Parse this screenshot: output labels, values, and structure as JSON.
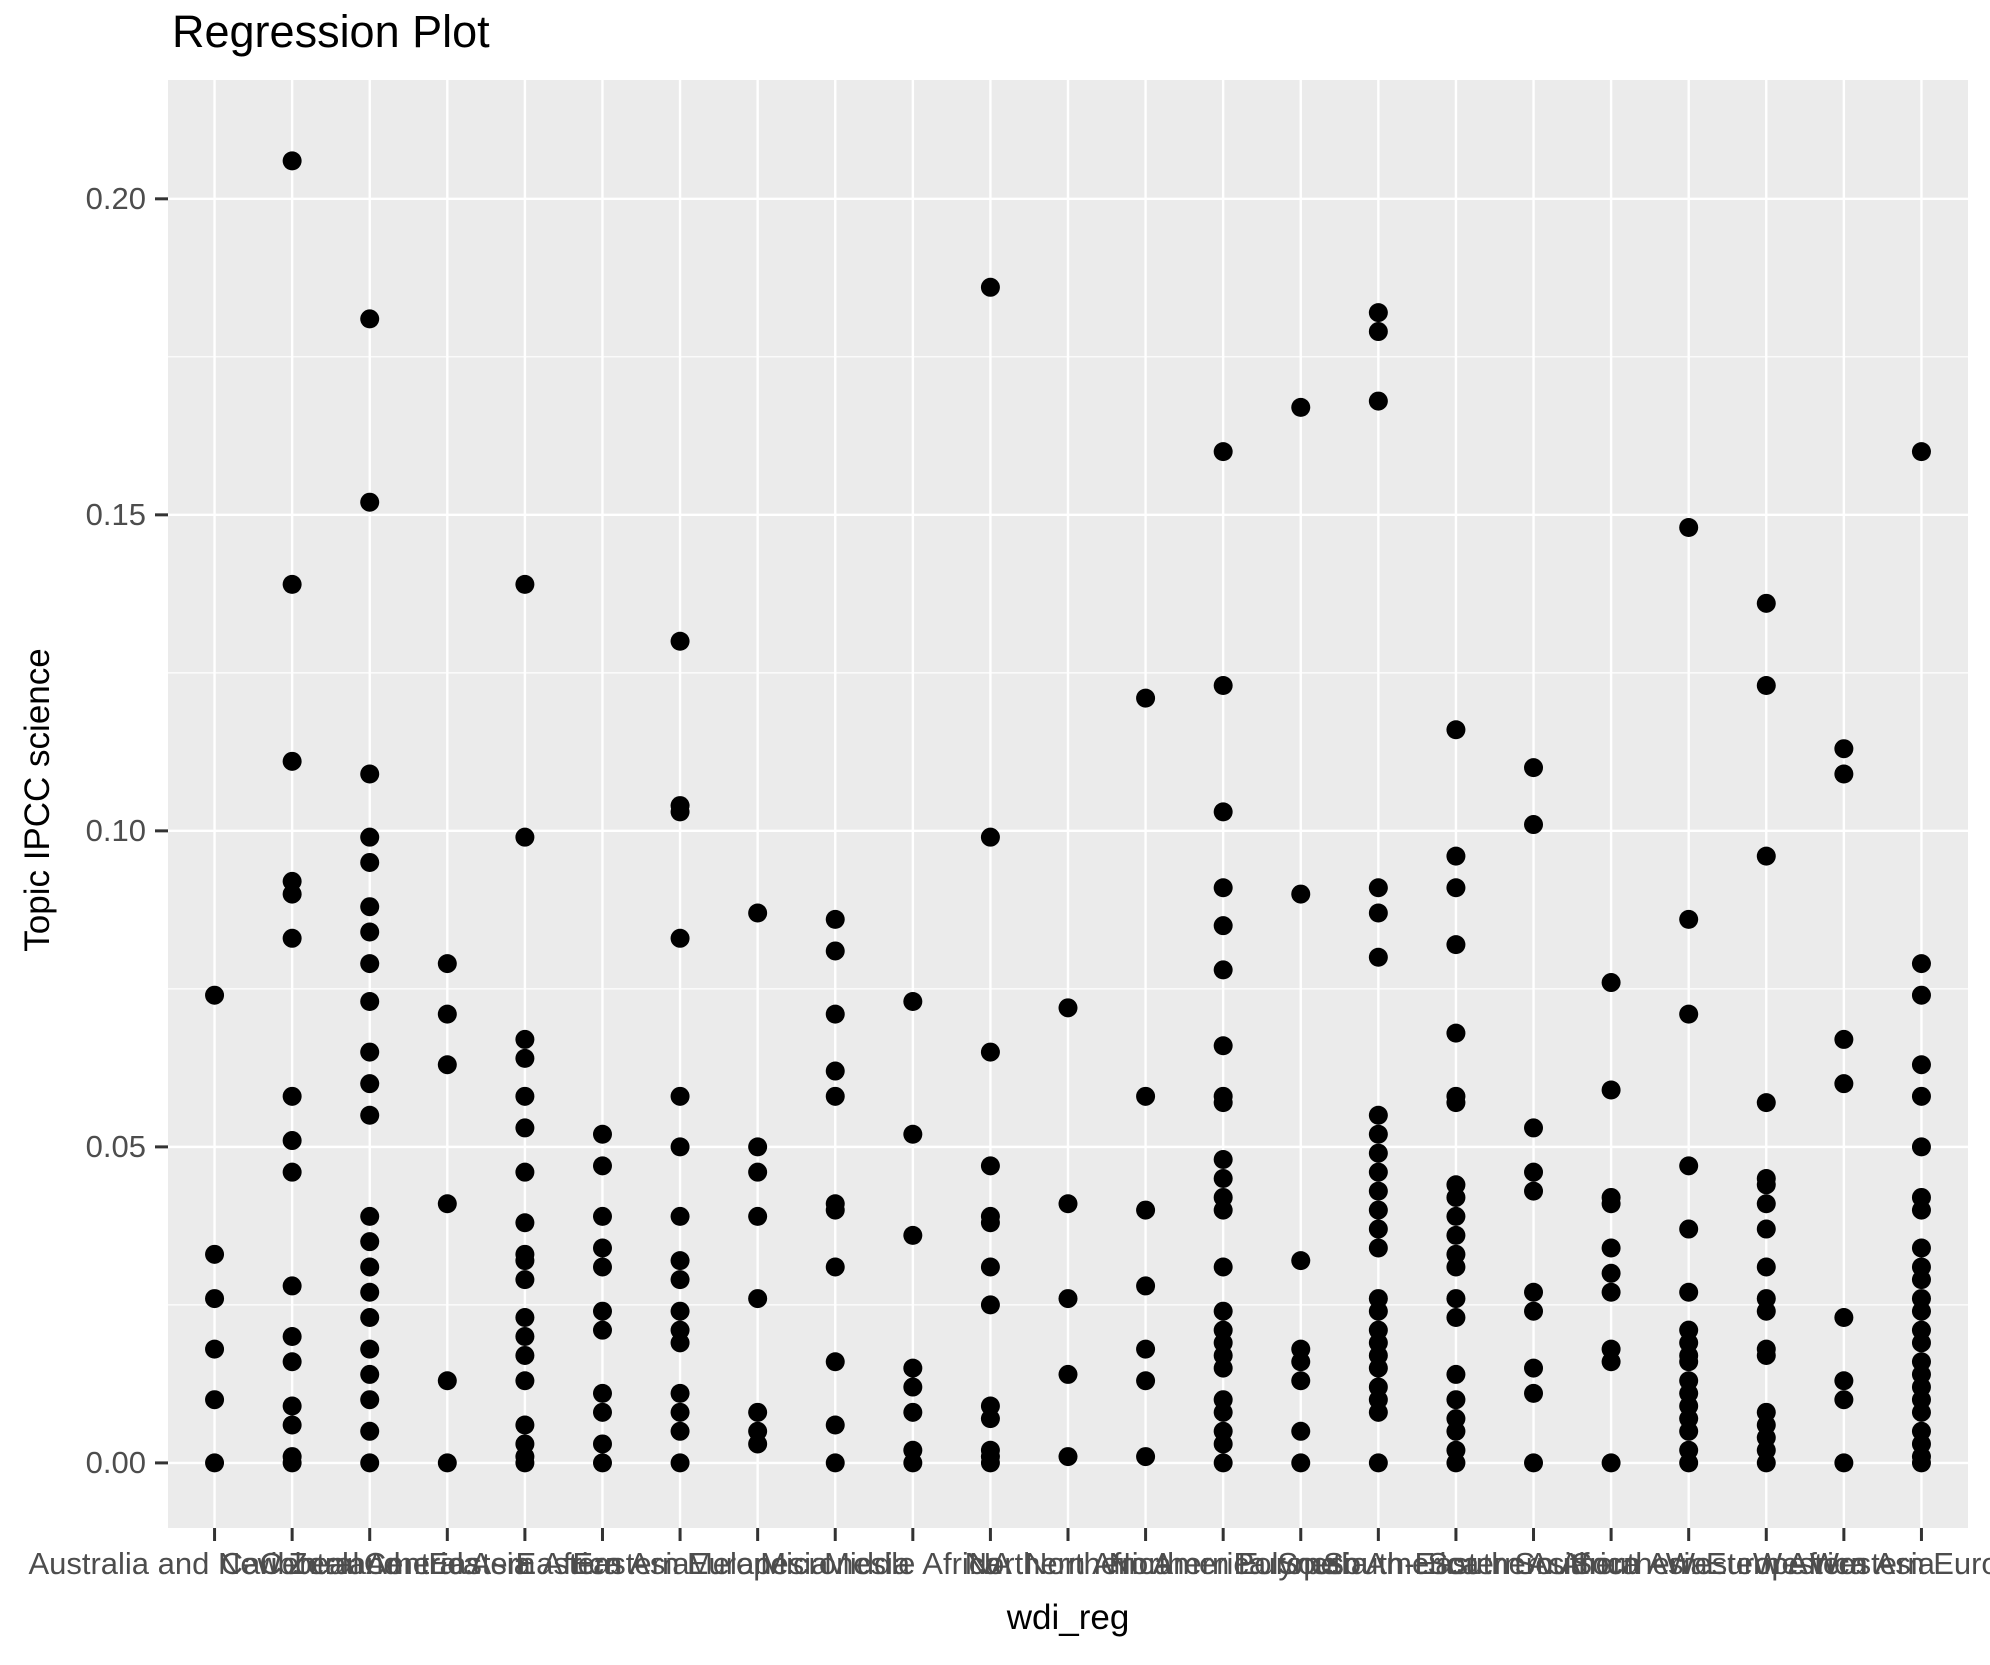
{
  "chart_data": {
    "type": "scatter",
    "title": "Regression Plot",
    "xlabel": "wdi_reg",
    "ylabel": "Topic IPCC science",
    "legend": "none",
    "grid": "white major+minor horizontal, major vertical, on gray panel",
    "panel_background": "#EBEBEB",
    "grid_color": "#FFFFFF",
    "point_color": "#000000",
    "axis_text_color": "#4D4D4D",
    "tick_mark_color": "#333333",
    "ylim": [
      -0.0103,
      0.2188
    ],
    "y_ticks": [
      {
        "value": 0.0,
        "label": "0.00"
      },
      {
        "value": 0.05,
        "label": "0.05"
      },
      {
        "value": 0.1,
        "label": "0.10"
      },
      {
        "value": 0.15,
        "label": "0.15"
      },
      {
        "value": 0.2,
        "label": "0.20"
      }
    ],
    "y_minor_ticks": [
      0.025,
      0.075,
      0.125,
      0.175
    ],
    "columns": [
      {
        "category": "Australia and New Zealand",
        "values": [
          0.074,
          0.033,
          0.026,
          0.018,
          0.01,
          0.0
        ]
      },
      {
        "category": "Caribbean",
        "values": [
          0.206,
          0.139,
          0.111,
          0.092,
          0.09,
          0.083,
          0.058,
          0.051,
          0.046,
          0.028,
          0.02,
          0.016,
          0.009,
          0.006,
          0.001,
          0.0
        ]
      },
      {
        "category": "Central America",
        "values": [
          0.181,
          0.152,
          0.109,
          0.099,
          0.095,
          0.088,
          0.084,
          0.079,
          0.073,
          0.065,
          0.06,
          0.055,
          0.039,
          0.035,
          0.031,
          0.027,
          0.023,
          0.018,
          0.014,
          0.01,
          0.005,
          0.0
        ]
      },
      {
        "category": "Central Asia",
        "values": [
          0.079,
          0.071,
          0.063,
          0.041,
          0.013,
          0.0
        ]
      },
      {
        "category": "Eastern Africa",
        "values": [
          0.139,
          0.099,
          0.067,
          0.064,
          0.058,
          0.053,
          0.046,
          0.038,
          0.033,
          0.032,
          0.029,
          0.023,
          0.02,
          0.017,
          0.013,
          0.006,
          0.003,
          0.001,
          0.0
        ]
      },
      {
        "category": "Eastern Asia",
        "values": [
          0.052,
          0.047,
          0.039,
          0.034,
          0.031,
          0.024,
          0.021,
          0.011,
          0.008,
          0.003,
          0.0
        ]
      },
      {
        "category": "Eastern Europe",
        "values": [
          0.13,
          0.104,
          0.103,
          0.083,
          0.058,
          0.05,
          0.039,
          0.032,
          0.029,
          0.024,
          0.021,
          0.019,
          0.011,
          0.008,
          0.005,
          0.0
        ]
      },
      {
        "category": "Melanesia",
        "values": [
          0.087,
          0.05,
          0.046,
          0.039,
          0.026,
          0.008,
          0.005,
          0.003
        ]
      },
      {
        "category": "Micronesia",
        "values": [
          0.086,
          0.081,
          0.071,
          0.062,
          0.058,
          0.041,
          0.04,
          0.031,
          0.016,
          0.006,
          0.0
        ]
      },
      {
        "category": "Middle Africa",
        "values": [
          0.073,
          0.052,
          0.036,
          0.015,
          0.012,
          0.008,
          0.002,
          0.0
        ]
      },
      {
        "category": "NA",
        "values": [
          0.186,
          0.099,
          0.065,
          0.047,
          0.039,
          0.038,
          0.031,
          0.025,
          0.009,
          0.007,
          0.002,
          0.001,
          0.0
        ]
      },
      {
        "category": "Northern Africa",
        "values": [
          0.072,
          0.041,
          0.026,
          0.014,
          0.001
        ]
      },
      {
        "category": "Northern America",
        "values": [
          0.121,
          0.058,
          0.04,
          0.028,
          0.018,
          0.013,
          0.001
        ]
      },
      {
        "category": "Northern Europe",
        "values": [
          0.16,
          0.123,
          0.103,
          0.091,
          0.085,
          0.078,
          0.066,
          0.058,
          0.057,
          0.048,
          0.045,
          0.042,
          0.04,
          0.031,
          0.024,
          0.021,
          0.019,
          0.017,
          0.015,
          0.01,
          0.008,
          0.005,
          0.003,
          0.0
        ]
      },
      {
        "category": "Polynesia",
        "values": [
          0.167,
          0.09,
          0.032,
          0.018,
          0.016,
          0.013,
          0.005,
          0.0
        ]
      },
      {
        "category": "South America",
        "values": [
          0.182,
          0.179,
          0.168,
          0.091,
          0.087,
          0.08,
          0.055,
          0.052,
          0.049,
          0.046,
          0.043,
          0.04,
          0.037,
          0.034,
          0.026,
          0.024,
          0.021,
          0.019,
          0.017,
          0.015,
          0.012,
          0.01,
          0.008,
          0.0
        ]
      },
      {
        "category": "South-Eastern Asia",
        "values": [
          0.116,
          0.096,
          0.091,
          0.082,
          0.068,
          0.058,
          0.057,
          0.044,
          0.042,
          0.039,
          0.036,
          0.033,
          0.031,
          0.026,
          0.023,
          0.014,
          0.01,
          0.007,
          0.005,
          0.002,
          0.0
        ]
      },
      {
        "category": "Southern Africa",
        "values": [
          0.11,
          0.101,
          0.053,
          0.046,
          0.043,
          0.027,
          0.024,
          0.015,
          0.011,
          0.0
        ]
      },
      {
        "category": "Southern Asia",
        "values": [
          0.076,
          0.059,
          0.042,
          0.041,
          0.034,
          0.03,
          0.027,
          0.018,
          0.016,
          0.0
        ]
      },
      {
        "category": "Southern Europe",
        "values": [
          0.148,
          0.086,
          0.071,
          0.047,
          0.037,
          0.027,
          0.021,
          0.019,
          0.017,
          0.016,
          0.013,
          0.011,
          0.009,
          0.007,
          0.005,
          0.002,
          0.0
        ]
      },
      {
        "category": "Western Africa",
        "values": [
          0.136,
          0.123,
          0.096,
          0.057,
          0.045,
          0.044,
          0.041,
          0.037,
          0.031,
          0.026,
          0.024,
          0.018,
          0.017,
          0.008,
          0.006,
          0.004,
          0.002,
          0.0
        ]
      },
      {
        "category": "Western Asia",
        "values": [
          0.113,
          0.109,
          0.067,
          0.06,
          0.023,
          0.013,
          0.01,
          0.0
        ]
      },
      {
        "category": "Western Europe",
        "values": [
          0.16,
          0.079,
          0.074,
          0.063,
          0.058,
          0.05,
          0.042,
          0.04,
          0.034,
          0.031,
          0.029,
          0.026,
          0.024,
          0.021,
          0.019,
          0.016,
          0.014,
          0.012,
          0.01,
          0.008,
          0.005,
          0.003,
          0.001,
          0.0
        ]
      }
    ]
  }
}
